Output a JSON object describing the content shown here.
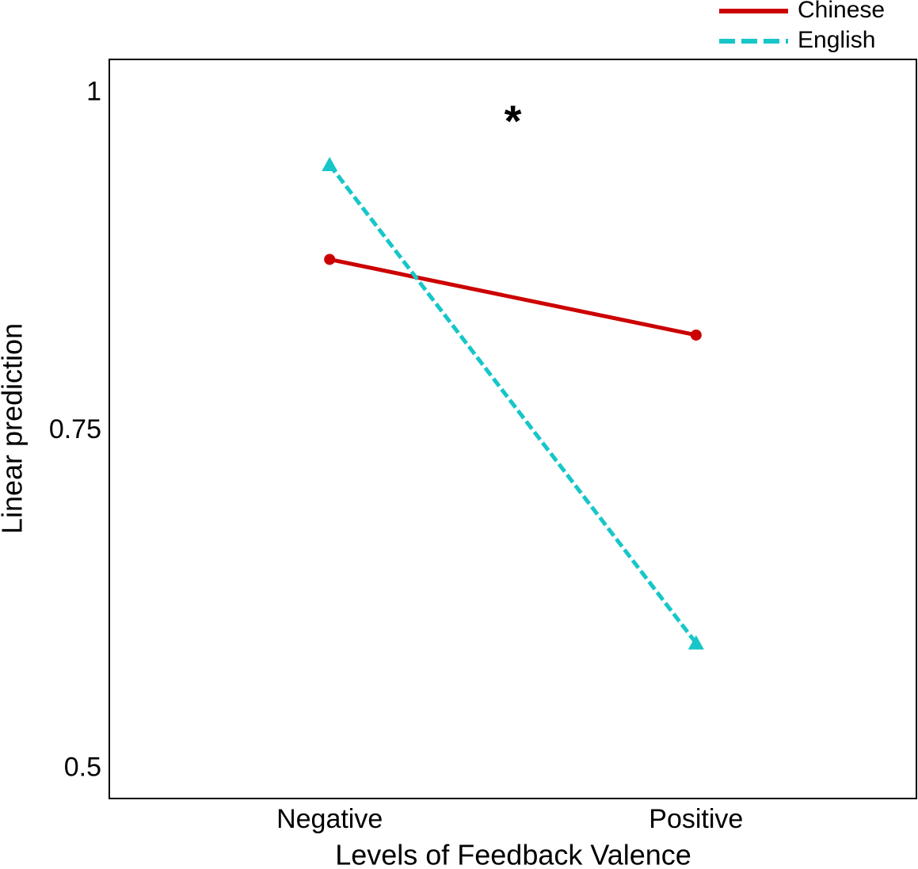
{
  "chart_data": {
    "type": "line",
    "xlabel": "Levels of Feedback Valence",
    "ylabel": "Linear prediction",
    "annotation": "*",
    "categories": [
      "Negative",
      "Positive"
    ],
    "series": [
      {
        "name": "Chinese",
        "color": "#cc0000",
        "line_style": "solid",
        "marker": "circle",
        "values": [
          0.877,
          0.821
        ]
      },
      {
        "name": "English",
        "color": "#17c6c8",
        "line_style": "dashed",
        "marker": "triangle",
        "values": [
          0.947,
          0.593
        ]
      }
    ],
    "ylim": [
      0.478,
      1.025
    ],
    "yticks": [
      0.5,
      0.75,
      1
    ],
    "grid": false,
    "legend": "top-right"
  }
}
